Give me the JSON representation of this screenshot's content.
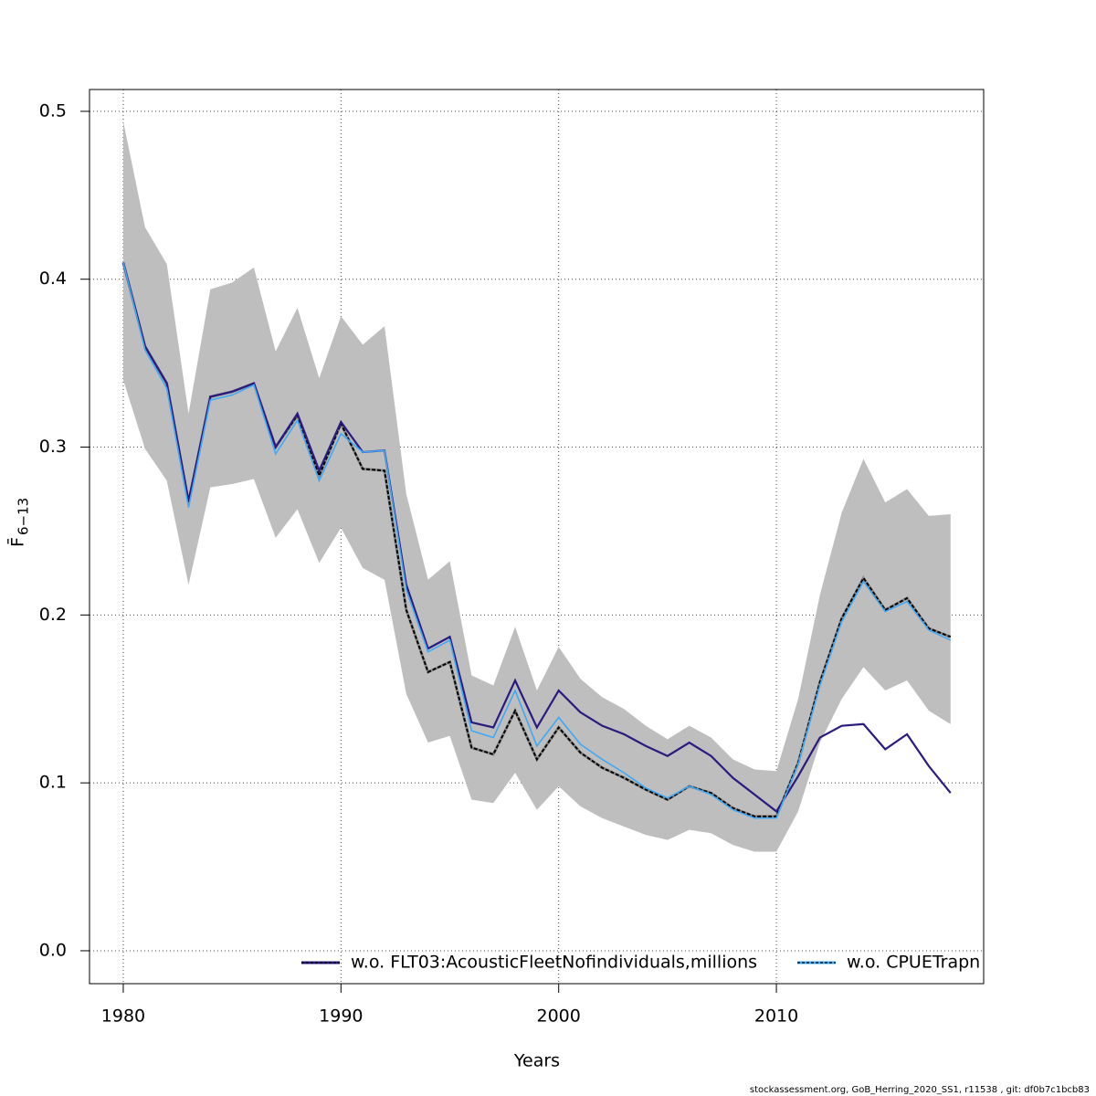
{
  "chart_data": {
    "type": "line",
    "xlabel": "Years",
    "ylabel": {
      "text": "F̄",
      "subscript": "6−13"
    },
    "footer": "stockassessment.org, GoB_Herring_2020_SS1, r11538 , git: df0b7c1bcb83",
    "x": [
      1980,
      1981,
      1982,
      1983,
      1984,
      1985,
      1986,
      1987,
      1988,
      1989,
      1990,
      1991,
      1992,
      1993,
      1994,
      1995,
      1996,
      1997,
      1998,
      1999,
      2000,
      2001,
      2002,
      2003,
      2004,
      2005,
      2006,
      2007,
      2008,
      2009,
      2010,
      2011,
      2012,
      2013,
      2014,
      2015,
      2016,
      2017,
      2018
    ],
    "estimate": {
      "color": "#000000",
      "band_color": "#bebebe",
      "values": [
        0.41,
        0.36,
        0.338,
        0.267,
        0.33,
        0.333,
        0.338,
        0.3,
        0.319,
        0.283,
        0.314,
        0.287,
        0.286,
        0.203,
        0.166,
        0.172,
        0.121,
        0.117,
        0.143,
        0.114,
        0.133,
        0.118,
        0.109,
        0.103,
        0.096,
        0.09,
        0.098,
        0.094,
        0.085,
        0.08,
        0.08,
        0.112,
        0.16,
        0.198,
        0.222,
        0.203,
        0.21,
        0.192,
        0.187
      ],
      "upper": [
        0.494,
        0.431,
        0.409,
        0.32,
        0.394,
        0.398,
        0.407,
        0.357,
        0.383,
        0.341,
        0.378,
        0.361,
        0.372,
        0.272,
        0.221,
        0.232,
        0.164,
        0.158,
        0.193,
        0.155,
        0.181,
        0.162,
        0.151,
        0.144,
        0.134,
        0.126,
        0.134,
        0.127,
        0.114,
        0.108,
        0.107,
        0.15,
        0.212,
        0.261,
        0.293,
        0.267,
        0.275,
        0.259,
        0.26
      ],
      "lower": [
        0.34,
        0.299,
        0.28,
        0.218,
        0.276,
        0.278,
        0.281,
        0.246,
        0.263,
        0.231,
        0.252,
        0.228,
        0.221,
        0.153,
        0.124,
        0.128,
        0.09,
        0.088,
        0.106,
        0.084,
        0.098,
        0.086,
        0.079,
        0.074,
        0.069,
        0.066,
        0.072,
        0.07,
        0.063,
        0.059,
        0.059,
        0.083,
        0.124,
        0.15,
        0.169,
        0.155,
        0.161,
        0.143,
        0.135
      ]
    },
    "series": [
      {
        "name": "w.o. FLT03:AcousticFleetNofindividuals,millions",
        "color": "#2b1a7f",
        "values": [
          0.41,
          0.36,
          0.338,
          0.268,
          0.33,
          0.333,
          0.338,
          0.3,
          0.32,
          0.286,
          0.315,
          0.297,
          0.298,
          0.218,
          0.18,
          0.187,
          0.136,
          0.133,
          0.161,
          0.133,
          0.155,
          0.142,
          0.134,
          0.129,
          0.122,
          0.116,
          0.124,
          0.116,
          0.103,
          0.093,
          0.083,
          0.104,
          0.127,
          0.134,
          0.135,
          0.12,
          0.129,
          0.11,
          0.094
        ]
      },
      {
        "name": "w.o. CPUETrapn",
        "color": "#3fa9f5",
        "values": [
          0.41,
          0.358,
          0.335,
          0.264,
          0.328,
          0.331,
          0.337,
          0.296,
          0.316,
          0.28,
          0.308,
          0.297,
          0.298,
          0.215,
          0.178,
          0.185,
          0.131,
          0.127,
          0.155,
          0.122,
          0.139,
          0.123,
          0.114,
          0.106,
          0.097,
          0.091,
          0.098,
          0.093,
          0.084,
          0.079,
          0.079,
          0.111,
          0.158,
          0.196,
          0.22,
          0.202,
          0.208,
          0.191,
          0.185
        ]
      }
    ],
    "xlim": [
      1978.45,
      2019.52
    ],
    "ylim": [
      -0.0196,
      0.513
    ],
    "xticks": [
      1980,
      1990,
      2000,
      2010
    ],
    "yticks": [
      {
        "value": 0,
        "label": "0.0"
      },
      0.1,
      0.2,
      0.3,
      0.4,
      0.5
    ],
    "grid": true,
    "legend": "bottom-right"
  }
}
